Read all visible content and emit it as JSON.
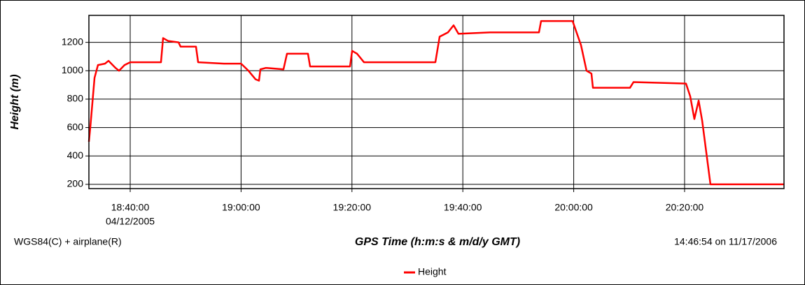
{
  "chart_data": {
    "type": "line",
    "y_label": "Height (m)",
    "x_label": "GPS Time (h:m:s & m/d/y GMT)",
    "x_date_label": "04/12/2005",
    "footer_left": "WGS84(C) + airplane(R)",
    "footer_right": "14:46:54 on 11/17/2006",
    "grid": true,
    "legend": "bottom",
    "xlim": [
      "18:32:33",
      "20:37:56"
    ],
    "xticks": [
      "18:40:00",
      "19:00:00",
      "19:20:00",
      "19:40:00",
      "20:00:00",
      "20:20:00"
    ],
    "ylim": [
      170,
      1390
    ],
    "yticks": [
      200,
      400,
      600,
      800,
      1000,
      1200
    ],
    "x": [
      "18:32:33",
      "18:32:48",
      "18:33:34",
      "18:34:11",
      "18:35:27",
      "18:36:05",
      "18:37:21",
      "18:37:59",
      "18:38:59",
      "18:40:00",
      "18:45:33",
      "18:45:56",
      "18:46:49",
      "18:48:43",
      "18:49:05",
      "18:51:52",
      "18:52:15",
      "18:56:55",
      "19:00:00",
      "19:01:20",
      "19:02:36",
      "19:03:14",
      "19:03:29",
      "19:04:29",
      "19:07:39",
      "19:08:17",
      "19:12:04",
      "19:12:27",
      "19:19:39",
      "19:20:02",
      "19:20:55",
      "19:22:10",
      "19:35:03",
      "19:35:49",
      "19:37:19",
      "19:38:20",
      "19:39:13",
      "19:44:54",
      "19:53:44",
      "19:54:07",
      "19:59:48",
      "20:01:19",
      "20:02:19",
      "20:03:12",
      "20:03:28",
      "20:10:09",
      "20:10:47",
      "20:20:15",
      "20:21:01",
      "20:21:46",
      "20:22:32",
      "20:23:10",
      "20:24:40",
      "20:37:56"
    ],
    "series": [
      {
        "name": "Height",
        "color": "#ff0000",
        "values": [
          500,
          600,
          950,
          1040,
          1050,
          1070,
          1020,
          1000,
          1040,
          1060,
          1060,
          1230,
          1210,
          1200,
          1170,
          1170,
          1060,
          1050,
          1050,
          1000,
          940,
          930,
          1010,
          1020,
          1010,
          1120,
          1120,
          1030,
          1030,
          1140,
          1120,
          1060,
          1060,
          1240,
          1270,
          1320,
          1260,
          1270,
          1270,
          1350,
          1350,
          1180,
          1000,
          980,
          880,
          880,
          920,
          910,
          820,
          660,
          790,
          650,
          200,
          200
        ]
      }
    ]
  }
}
